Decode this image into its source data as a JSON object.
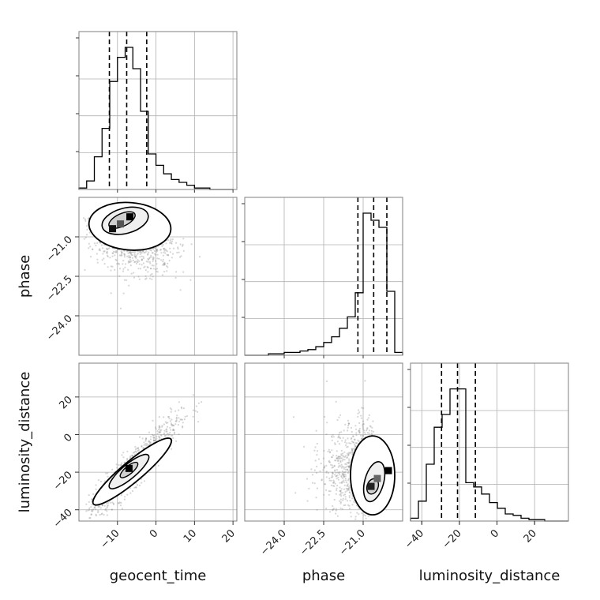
{
  "chart_data": {
    "type": "corner",
    "parameters": [
      "geocent_time",
      "phase",
      "luminosity_distance"
    ],
    "axis_labels": {
      "x": [
        "geocent_time",
        "phase",
        "luminosity_distance"
      ],
      "y": [
        "phase",
        "luminosity_distance"
      ]
    },
    "ranges": {
      "geocent_time": [
        -20,
        21
      ],
      "phase": [
        -25.5,
        -19.5
      ],
      "luminosity_distance": [
        -46,
        38
      ]
    },
    "ticks": {
      "geocent_time": [
        -10,
        0,
        10,
        20
      ],
      "phase": [
        -24.0,
        -22.5,
        -21.0
      ],
      "luminosity_distance": [
        -40,
        -20,
        0,
        20
      ]
    },
    "tick_labels": {
      "geocent_time": [
        "−10",
        "0",
        "10",
        "20"
      ],
      "phase": [
        "−24.0",
        "−22.5",
        "−21.0"
      ],
      "luminosity_distance": [
        "−40",
        "−20",
        "0",
        "20"
      ]
    },
    "quantiles": {
      "geocent_time": [
        -12.1,
        -7.6,
        -2.4
      ],
      "phase": [
        -21.2,
        -20.6,
        -20.1
      ],
      "luminosity_distance": [
        -29.5,
        -21.0,
        -11.5
      ]
    },
    "histograms": {
      "geocent_time": {
        "bin_edges": [
          -20,
          -18,
          -16,
          -14,
          -12,
          -10,
          -8,
          -6,
          -4,
          -2,
          0,
          2,
          4,
          6,
          8,
          10,
          12,
          14,
          16,
          18,
          20
        ],
        "counts": [
          0.01,
          0.06,
          0.23,
          0.43,
          0.76,
          0.93,
          1.0,
          0.85,
          0.55,
          0.25,
          0.17,
          0.11,
          0.07,
          0.05,
          0.03,
          0.01,
          0.01,
          0,
          0,
          0
        ]
      },
      "phase": {
        "bin_edges": [
          -25.5,
          -25.2,
          -24.9,
          -24.6,
          -24.3,
          -24.0,
          -23.7,
          -23.4,
          -23.1,
          -22.8,
          -22.5,
          -22.2,
          -21.9,
          -21.6,
          -21.3,
          -21.0,
          -20.7,
          -20.4,
          -20.1,
          -19.8,
          -19.5
        ],
        "counts": [
          0,
          0,
          0,
          0.01,
          0.01,
          0.02,
          0.02,
          0.03,
          0.04,
          0.06,
          0.09,
          0.13,
          0.19,
          0.27,
          0.44,
          1.0,
          0.95,
          0.9,
          0.45,
          0.02
        ]
      },
      "luminosity_distance": {
        "bin_edges": [
          -46,
          -41.8,
          -37.6,
          -33.4,
          -29.2,
          -25,
          -20.8,
          -16.6,
          -12.4,
          -8.2,
          -4,
          0.2,
          4.4,
          8.6,
          12.8,
          17,
          21.2,
          25.4,
          29.6,
          33.8,
          38
        ],
        "counts": [
          0.02,
          0.14,
          0.4,
          0.66,
          0.75,
          0.93,
          0.93,
          0.27,
          0.24,
          0.19,
          0.13,
          0.09,
          0.05,
          0.04,
          0.02,
          0.01,
          0.01,
          0,
          0,
          0
        ]
      }
    },
    "density_modes": {
      "phase_vs_geocent_time": {
        "x": -8,
        "y": -20.3
      },
      "luminosity_distance_vs_geocent_time": {
        "x": -7,
        "y": -18
      },
      "luminosity_distance_vs_phase": {
        "x": -20.4,
        "y": -20
      }
    },
    "grid": true,
    "colors": {
      "line": "#000000",
      "scatter": "#8a8a8a",
      "grid": "#b0b0b0",
      "frame": "#7f7f7f"
    }
  }
}
